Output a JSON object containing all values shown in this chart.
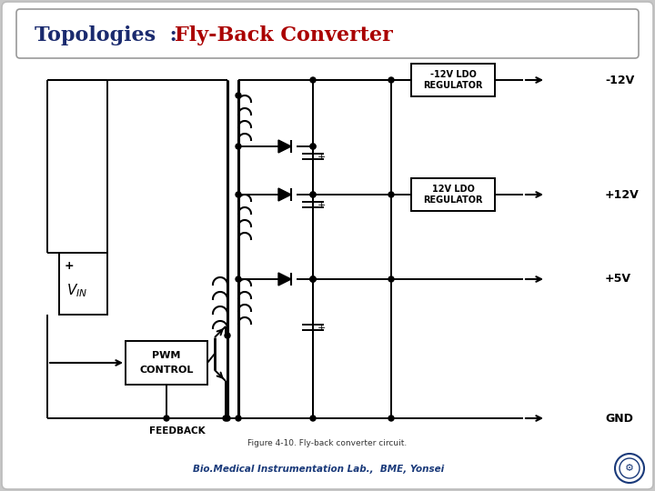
{
  "title_black": "Topologies  : ",
  "title_red": "Fly-Back Converter",
  "title_fontsize": 16,
  "footer_text": "Bio.Medical Instrumentation Lab.,  BME, Yonsei",
  "footer_color": "#1a3a7a",
  "bg_outer": "#c8c8c8",
  "bg_slide": "#ffffff"
}
